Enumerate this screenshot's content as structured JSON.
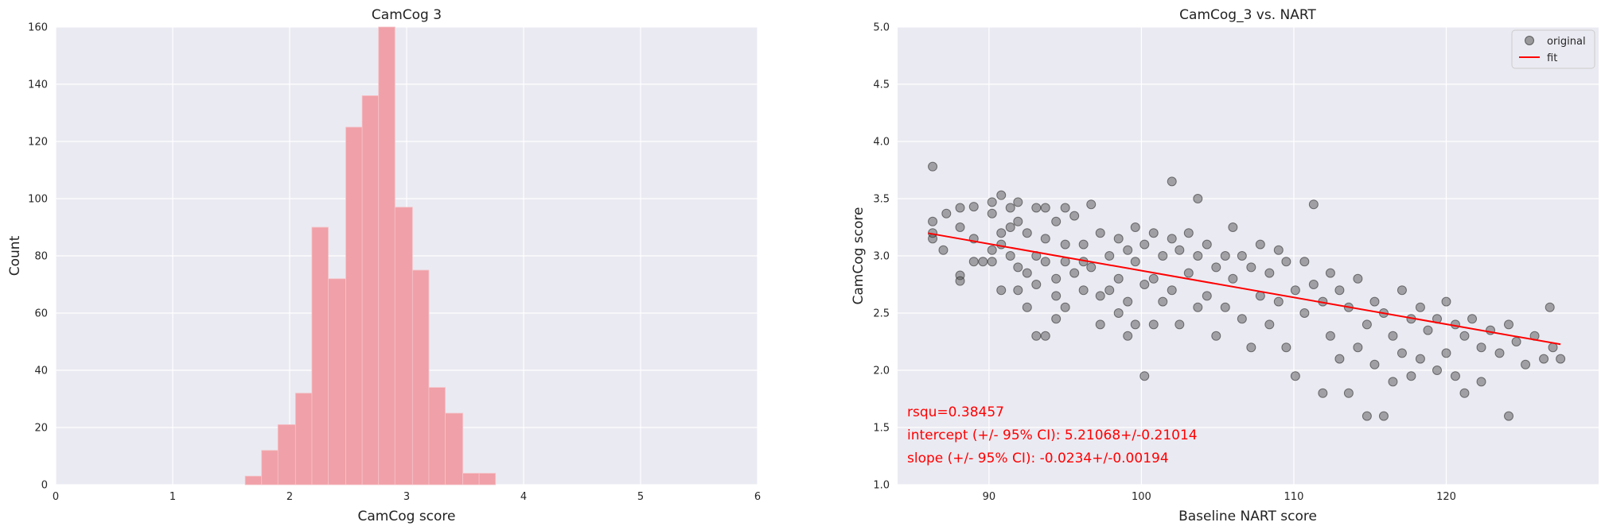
{
  "chart_data": [
    {
      "type": "bar",
      "title": "CamCog 3",
      "xlabel": "CamCog score",
      "ylabel": "Count",
      "xlim": [
        0,
        6
      ],
      "ylim": [
        0,
        160
      ],
      "xticks": [
        "0",
        "1",
        "2",
        "3",
        "4",
        "5",
        "6"
      ],
      "yticks": [
        "0",
        "20",
        "40",
        "60",
        "80",
        "100",
        "120",
        "140",
        "160"
      ],
      "grid": true,
      "color": "#f0a0a8",
      "bins": [
        {
          "x0": 1.62,
          "x1": 1.76,
          "count": 3
        },
        {
          "x0": 1.76,
          "x1": 1.9,
          "count": 12
        },
        {
          "x0": 1.9,
          "x1": 2.05,
          "count": 21
        },
        {
          "x0": 2.05,
          "x1": 2.19,
          "count": 32
        },
        {
          "x0": 2.19,
          "x1": 2.33,
          "count": 90
        },
        {
          "x0": 2.33,
          "x1": 2.48,
          "count": 72
        },
        {
          "x0": 2.48,
          "x1": 2.62,
          "count": 125
        },
        {
          "x0": 2.62,
          "x1": 2.76,
          "count": 136
        },
        {
          "x0": 2.76,
          "x1": 2.9,
          "count": 160
        },
        {
          "x0": 2.9,
          "x1": 3.05,
          "count": 97
        },
        {
          "x0": 3.05,
          "x1": 3.19,
          "count": 75
        },
        {
          "x0": 3.19,
          "x1": 3.33,
          "count": 34
        },
        {
          "x0": 3.33,
          "x1": 3.48,
          "count": 25
        },
        {
          "x0": 3.48,
          "x1": 3.62,
          "count": 4
        },
        {
          "x0": 3.62,
          "x1": 3.76,
          "count": 4
        }
      ]
    },
    {
      "type": "scatter",
      "title": "CamCog_3 vs. NART",
      "xlabel": "Baseline NART score",
      "ylabel": "CamCog score",
      "xlim": [
        84,
        130
      ],
      "ylim": [
        1.0,
        5.0
      ],
      "xticks": [
        "90",
        "100",
        "110",
        "120"
      ],
      "yticks": [
        "1.0",
        "1.5",
        "2.0",
        "2.5",
        "3.0",
        "3.5",
        "4.0",
        "4.5",
        "5.0"
      ],
      "grid": true,
      "legend": {
        "position": "top-right",
        "entries": [
          {
            "label": "original",
            "color": "#555555"
          },
          {
            "label": "fit",
            "color": "#ff0000"
          }
        ]
      },
      "fit": {
        "intercept": 5.21068,
        "slope": -0.0234,
        "x_range": [
          86,
          127.5
        ]
      },
      "annotations": [
        "rsqu=0.38457",
        "intercept (+/- 95% CI): 5.21068+/-0.21014",
        "slope (+/- 95% CI): -0.0234+/-0.00194"
      ],
      "points": [
        [
          86.3,
          3.78
        ],
        [
          86.3,
          3.3
        ],
        [
          86.3,
          3.15
        ],
        [
          86.3,
          3.2
        ],
        [
          87.0,
          3.05
        ],
        [
          87.2,
          3.37
        ],
        [
          88.1,
          3.42
        ],
        [
          88.1,
          3.25
        ],
        [
          88.1,
          2.83
        ],
        [
          88.1,
          2.78
        ],
        [
          89.0,
          3.15
        ],
        [
          89.0,
          2.95
        ],
        [
          89.0,
          3.43
        ],
        [
          89.6,
          2.95
        ],
        [
          90.2,
          3.37
        ],
        [
          90.2,
          3.05
        ],
        [
          90.2,
          2.95
        ],
        [
          90.2,
          3.47
        ],
        [
          90.8,
          3.53
        ],
        [
          90.8,
          3.2
        ],
        [
          90.8,
          2.7
        ],
        [
          90.8,
          3.1
        ],
        [
          91.4,
          3.25
        ],
        [
          91.4,
          3.42
        ],
        [
          91.4,
          3.0
        ],
        [
          91.9,
          3.3
        ],
        [
          91.9,
          2.9
        ],
        [
          91.9,
          2.7
        ],
        [
          91.9,
          3.47
        ],
        [
          92.5,
          3.2
        ],
        [
          92.5,
          2.55
        ],
        [
          92.5,
          2.85
        ],
        [
          93.1,
          3.0
        ],
        [
          93.1,
          3.42
        ],
        [
          93.1,
          2.75
        ],
        [
          93.1,
          2.3
        ],
        [
          93.7,
          3.15
        ],
        [
          93.7,
          2.95
        ],
        [
          93.7,
          3.42
        ],
        [
          93.7,
          2.3
        ],
        [
          94.4,
          3.3
        ],
        [
          94.4,
          2.8
        ],
        [
          94.4,
          2.45
        ],
        [
          94.4,
          2.65
        ],
        [
          95.0,
          3.1
        ],
        [
          95.0,
          2.95
        ],
        [
          95.0,
          2.55
        ],
        [
          95.0,
          3.42
        ],
        [
          95.6,
          3.35
        ],
        [
          95.6,
          2.85
        ],
        [
          96.2,
          3.1
        ],
        [
          96.2,
          2.7
        ],
        [
          96.2,
          2.95
        ],
        [
          96.7,
          3.45
        ],
        [
          96.7,
          2.9
        ],
        [
          97.3,
          3.2
        ],
        [
          97.3,
          2.65
        ],
        [
          97.3,
          2.4
        ],
        [
          97.9,
          3.0
        ],
        [
          97.9,
          2.7
        ],
        [
          98.5,
          3.15
        ],
        [
          98.5,
          2.8
        ],
        [
          98.5,
          2.5
        ],
        [
          99.1,
          3.05
        ],
        [
          99.1,
          2.6
        ],
        [
          99.1,
          2.3
        ],
        [
          99.6,
          3.25
        ],
        [
          99.6,
          2.95
        ],
        [
          99.6,
          2.4
        ],
        [
          100.2,
          3.1
        ],
        [
          100.2,
          2.75
        ],
        [
          100.2,
          1.95
        ],
        [
          100.8,
          3.2
        ],
        [
          100.8,
          2.8
        ],
        [
          100.8,
          2.4
        ],
        [
          101.4,
          3.0
        ],
        [
          101.4,
          2.6
        ],
        [
          102.0,
          3.65
        ],
        [
          102.0,
          3.15
        ],
        [
          102.0,
          2.7
        ],
        [
          102.5,
          3.05
        ],
        [
          102.5,
          2.4
        ],
        [
          103.1,
          3.2
        ],
        [
          103.1,
          2.85
        ],
        [
          103.7,
          3.5
        ],
        [
          103.7,
          3.0
        ],
        [
          103.7,
          2.55
        ],
        [
          104.3,
          3.1
        ],
        [
          104.3,
          2.65
        ],
        [
          104.9,
          2.9
        ],
        [
          104.9,
          2.3
        ],
        [
          105.5,
          3.0
        ],
        [
          105.5,
          2.55
        ],
        [
          106.0,
          3.25
        ],
        [
          106.0,
          2.8
        ],
        [
          106.6,
          3.0
        ],
        [
          106.6,
          2.45
        ],
        [
          107.2,
          2.9
        ],
        [
          107.2,
          2.2
        ],
        [
          107.8,
          3.1
        ],
        [
          107.8,
          2.65
        ],
        [
          108.4,
          2.85
        ],
        [
          108.4,
          2.4
        ],
        [
          109.0,
          3.05
        ],
        [
          109.0,
          2.6
        ],
        [
          109.5,
          2.95
        ],
        [
          109.5,
          2.2
        ],
        [
          110.1,
          2.7
        ],
        [
          110.1,
          1.95
        ],
        [
          110.7,
          2.95
        ],
        [
          110.7,
          2.5
        ],
        [
          111.3,
          3.45
        ],
        [
          111.3,
          2.75
        ],
        [
          111.9,
          2.6
        ],
        [
          111.9,
          1.8
        ],
        [
          112.4,
          2.85
        ],
        [
          112.4,
          2.3
        ],
        [
          113.0,
          2.7
        ],
        [
          113.0,
          2.1
        ],
        [
          113.6,
          2.55
        ],
        [
          113.6,
          1.8
        ],
        [
          114.2,
          2.8
        ],
        [
          114.2,
          2.2
        ],
        [
          114.8,
          2.4
        ],
        [
          114.8,
          1.6
        ],
        [
          115.3,
          2.6
        ],
        [
          115.3,
          2.05
        ],
        [
          115.9,
          2.5
        ],
        [
          115.9,
          1.6
        ],
        [
          116.5,
          2.3
        ],
        [
          116.5,
          1.9
        ],
        [
          117.1,
          2.7
        ],
        [
          117.1,
          2.15
        ],
        [
          117.7,
          2.45
        ],
        [
          117.7,
          1.95
        ],
        [
          118.3,
          2.55
        ],
        [
          118.3,
          2.1
        ],
        [
          118.8,
          2.35
        ],
        [
          119.4,
          2.45
        ],
        [
          119.4,
          2.0
        ],
        [
          120.0,
          2.6
        ],
        [
          120.0,
          2.15
        ],
        [
          120.6,
          2.4
        ],
        [
          120.6,
          1.95
        ],
        [
          121.2,
          2.3
        ],
        [
          121.2,
          1.8
        ],
        [
          121.7,
          2.45
        ],
        [
          122.3,
          2.2
        ],
        [
          122.3,
          1.9
        ],
        [
          122.9,
          2.35
        ],
        [
          123.5,
          2.15
        ],
        [
          124.1,
          2.4
        ],
        [
          124.1,
          1.6
        ],
        [
          124.6,
          2.25
        ],
        [
          125.2,
          2.05
        ],
        [
          125.8,
          2.3
        ],
        [
          126.4,
          2.1
        ],
        [
          127.0,
          2.2
        ],
        [
          127.5,
          2.1
        ],
        [
          126.8,
          2.55
        ]
      ]
    }
  ]
}
